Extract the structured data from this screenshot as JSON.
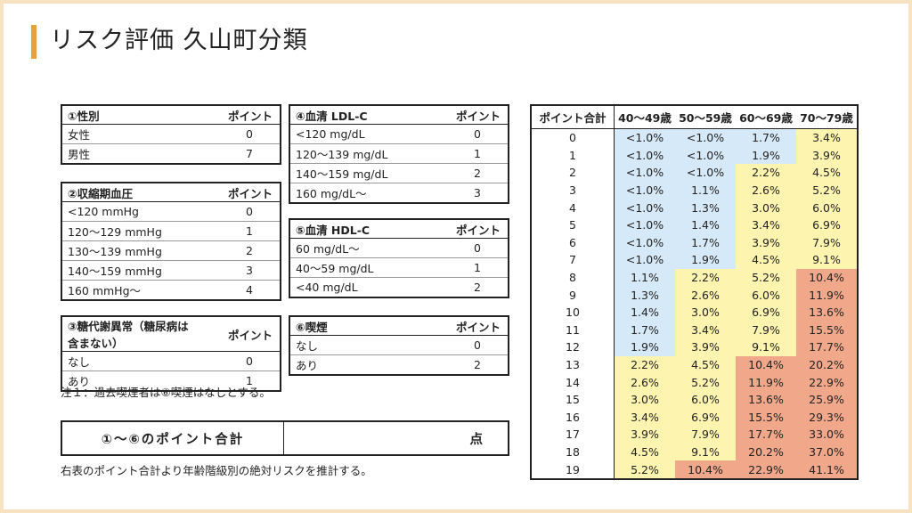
{
  "title": "リスク評価 久山町分類",
  "tables": {
    "sex": {
      "header": "①性別",
      "point_header": "ポイント",
      "rows": [
        {
          "label": "女性",
          "point": "0"
        },
        {
          "label": "男性",
          "point": "7"
        }
      ]
    },
    "sbp": {
      "header": "②収縮期血圧",
      "point_header": "ポイント",
      "rows": [
        {
          "label": "<120 mmHg",
          "point": "0"
        },
        {
          "label": "120〜129 mmHg",
          "point": "1"
        },
        {
          "label": "130〜139 mmHg",
          "point": "2"
        },
        {
          "label": "140〜159 mmHg",
          "point": "3"
        },
        {
          "label": "160 mmHg〜",
          "point": "4"
        }
      ]
    },
    "glucose": {
      "header": "③糖代謝異常（糖尿病は含まない）",
      "point_header": "ポイント",
      "rows": [
        {
          "label": "なし",
          "point": "0"
        },
        {
          "label": "あり",
          "point": "1"
        }
      ]
    },
    "ldl": {
      "header": "④血清 LDL-C",
      "point_header": "ポイント",
      "rows": [
        {
          "label": "<120 mg/dL",
          "point": "0"
        },
        {
          "label": "120〜139 mg/dL",
          "point": "1"
        },
        {
          "label": "140〜159 mg/dL",
          "point": "2"
        },
        {
          "label": "160 mg/dL〜",
          "point": "3"
        }
      ]
    },
    "hdl": {
      "header": "⑤血清 HDL-C",
      "point_header": "ポイント",
      "rows": [
        {
          "label": "60 mg/dL〜",
          "point": "0"
        },
        {
          "label": "40〜59 mg/dL",
          "point": "1"
        },
        {
          "label": "<40 mg/dL",
          "point": "2"
        }
      ]
    },
    "smoking": {
      "header": "⑥喫煙",
      "point_header": "ポイント",
      "rows": [
        {
          "label": "なし",
          "point": "0"
        },
        {
          "label": "あり",
          "point": "2"
        }
      ]
    }
  },
  "note": "注１：過去喫煙者は⑥喫煙はなしとする。",
  "sum": {
    "label": "①〜⑥のポイント合計",
    "unit": "点"
  },
  "note2": "右表のポイント合計より年齢階級別の絶対リスクを推計する。",
  "colors": {
    "accent": "#e9a23b",
    "low": "#d6e9f8",
    "mid": "#fdf4b0",
    "high": "#f1a88a"
  },
  "risk": {
    "headers": [
      "ポイント合計",
      "40〜49歳",
      "50〜59歳",
      "60〜69歳",
      "70〜79歳"
    ],
    "rows": [
      {
        "pt": "0",
        "v": [
          "<1.0%",
          "<1.0%",
          "1.7%",
          "3.4%"
        ],
        "c": [
          "b",
          "b",
          "b",
          "y"
        ]
      },
      {
        "pt": "1",
        "v": [
          "<1.0%",
          "<1.0%",
          "1.9%",
          "3.9%"
        ],
        "c": [
          "b",
          "b",
          "b",
          "y"
        ]
      },
      {
        "pt": "2",
        "v": [
          "<1.0%",
          "<1.0%",
          "2.2%",
          "4.5%"
        ],
        "c": [
          "b",
          "b",
          "y",
          "y"
        ]
      },
      {
        "pt": "3",
        "v": [
          "<1.0%",
          "1.1%",
          "2.6%",
          "5.2%"
        ],
        "c": [
          "b",
          "b",
          "y",
          "y"
        ]
      },
      {
        "pt": "4",
        "v": [
          "<1.0%",
          "1.3%",
          "3.0%",
          "6.0%"
        ],
        "c": [
          "b",
          "b",
          "y",
          "y"
        ]
      },
      {
        "pt": "5",
        "v": [
          "<1.0%",
          "1.4%",
          "3.4%",
          "6.9%"
        ],
        "c": [
          "b",
          "b",
          "y",
          "y"
        ]
      },
      {
        "pt": "6",
        "v": [
          "<1.0%",
          "1.7%",
          "3.9%",
          "7.9%"
        ],
        "c": [
          "b",
          "b",
          "y",
          "y"
        ]
      },
      {
        "pt": "7",
        "v": [
          "<1.0%",
          "1.9%",
          "4.5%",
          "9.1%"
        ],
        "c": [
          "b",
          "b",
          "y",
          "y"
        ]
      },
      {
        "pt": "8",
        "v": [
          "1.1%",
          "2.2%",
          "5.2%",
          "10.4%"
        ],
        "c": [
          "b",
          "y",
          "y",
          "r"
        ]
      },
      {
        "pt": "9",
        "v": [
          "1.3%",
          "2.6%",
          "6.0%",
          "11.9%"
        ],
        "c": [
          "b",
          "y",
          "y",
          "r"
        ]
      },
      {
        "pt": "10",
        "v": [
          "1.4%",
          "3.0%",
          "6.9%",
          "13.6%"
        ],
        "c": [
          "b",
          "y",
          "y",
          "r"
        ]
      },
      {
        "pt": "11",
        "v": [
          "1.7%",
          "3.4%",
          "7.9%",
          "15.5%"
        ],
        "c": [
          "b",
          "y",
          "y",
          "r"
        ]
      },
      {
        "pt": "12",
        "v": [
          "1.9%",
          "3.9%",
          "9.1%",
          "17.7%"
        ],
        "c": [
          "b",
          "y",
          "y",
          "r"
        ]
      },
      {
        "pt": "13",
        "v": [
          "2.2%",
          "4.5%",
          "10.4%",
          "20.2%"
        ],
        "c": [
          "y",
          "y",
          "r",
          "r"
        ]
      },
      {
        "pt": "14",
        "v": [
          "2.6%",
          "5.2%",
          "11.9%",
          "22.9%"
        ],
        "c": [
          "y",
          "y",
          "r",
          "r"
        ]
      },
      {
        "pt": "15",
        "v": [
          "3.0%",
          "6.0%",
          "13.6%",
          "25.9%"
        ],
        "c": [
          "y",
          "y",
          "r",
          "r"
        ]
      },
      {
        "pt": "16",
        "v": [
          "3.4%",
          "6.9%",
          "15.5%",
          "29.3%"
        ],
        "c": [
          "y",
          "y",
          "r",
          "r"
        ]
      },
      {
        "pt": "17",
        "v": [
          "3.9%",
          "7.9%",
          "17.7%",
          "33.0%"
        ],
        "c": [
          "y",
          "y",
          "r",
          "r"
        ]
      },
      {
        "pt": "18",
        "v": [
          "4.5%",
          "9.1%",
          "20.2%",
          "37.0%"
        ],
        "c": [
          "y",
          "y",
          "r",
          "r"
        ]
      },
      {
        "pt": "19",
        "v": [
          "5.2%",
          "10.4%",
          "22.9%",
          "41.1%"
        ],
        "c": [
          "y",
          "r",
          "r",
          "r"
        ]
      }
    ]
  }
}
